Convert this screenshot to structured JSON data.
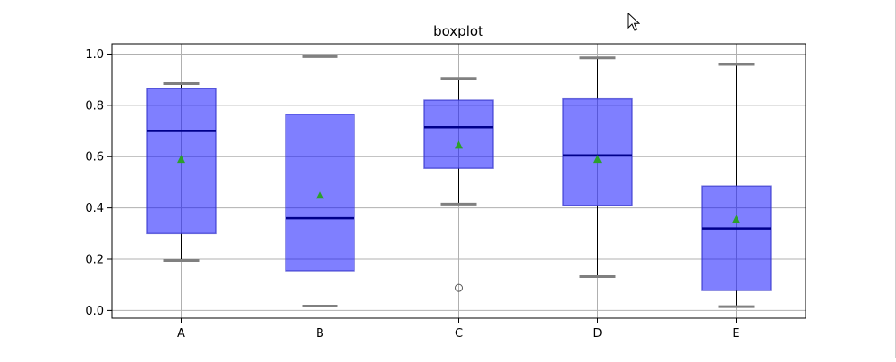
{
  "chart_data": {
    "type": "boxplot",
    "title": "boxplot",
    "categories": [
      "A",
      "B",
      "C",
      "D",
      "E"
    ],
    "ylim": [
      -0.03,
      1.04
    ],
    "yticks": [
      0.0,
      0.2,
      0.4,
      0.6,
      0.8,
      1.0
    ],
    "ytick_labels": [
      "0.0",
      "0.2",
      "0.4",
      "0.6",
      "0.8",
      "1.0"
    ],
    "grid": true,
    "boxes": [
      {
        "label": "A",
        "whislo": 0.195,
        "q1": 0.3,
        "med": 0.7,
        "q3": 0.865,
        "whishi": 0.885,
        "mean": 0.59,
        "fliers": []
      },
      {
        "label": "B",
        "whislo": 0.017,
        "q1": 0.155,
        "med": 0.36,
        "q3": 0.765,
        "whishi": 0.99,
        "mean": 0.45,
        "fliers": []
      },
      {
        "label": "C",
        "whislo": 0.415,
        "q1": 0.555,
        "med": 0.715,
        "q3": 0.82,
        "whishi": 0.905,
        "mean": 0.645,
        "fliers": [
          0.088
        ]
      },
      {
        "label": "D",
        "whislo": 0.132,
        "q1": 0.41,
        "med": 0.605,
        "q3": 0.825,
        "whishi": 0.985,
        "mean": 0.59,
        "fliers": []
      },
      {
        "label": "E",
        "whislo": 0.015,
        "q1": 0.078,
        "med": 0.32,
        "q3": 0.485,
        "whishi": 0.96,
        "mean": 0.355,
        "fliers": []
      }
    ],
    "colors": {
      "box_fill": "#0000ff",
      "box_edge": "#3333cc",
      "median": "#00008b",
      "mean_marker": "#2ca02c",
      "whisker": "#000000",
      "cap": "#808080",
      "grid": "#b0b0b0",
      "flier": "#555555"
    }
  }
}
